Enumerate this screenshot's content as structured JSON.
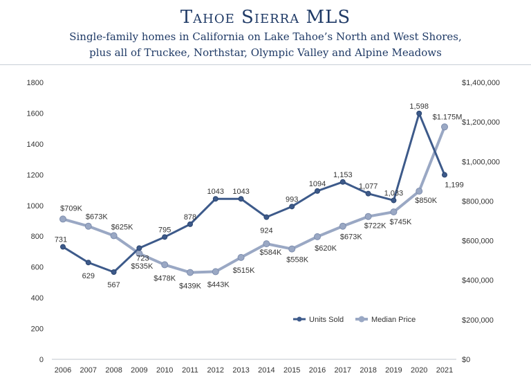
{
  "header": {
    "title": "Tahoe Sierra MLS",
    "subtitle_line1": "Single-family homes in California on Lake Tahoe’s North and West Shores,",
    "subtitle_line2": "plus all of Truckee, Northstar, Olympic Valley and Alpine Meadows"
  },
  "chart_data": {
    "type": "line",
    "title": "Tahoe Sierra MLS",
    "categories": [
      "2006",
      "2007",
      "2008",
      "2009",
      "2010",
      "2011",
      "2012",
      "2013",
      "2014",
      "2015",
      "2016",
      "2017",
      "2018",
      "2019",
      "2020",
      "2021"
    ],
    "series": [
      {
        "name": "Units Sold",
        "axis": "left",
        "color": "#3d5a8a",
        "values": [
          731,
          629,
          567,
          723,
          795,
          878,
          1043,
          1043,
          924,
          993,
          1094,
          1153,
          1077,
          1033,
          1598,
          1199
        ],
        "labels": [
          "731",
          "629",
          "567",
          "723",
          "795",
          "878",
          "1043",
          "1043",
          "924",
          "993",
          "1094",
          "1,153",
          "1,077",
          "1,033",
          "1,598",
          "1,199"
        ]
      },
      {
        "name": "Median Price",
        "axis": "right",
        "color": "#9aa8c4",
        "values": [
          709000,
          673000,
          625000,
          535000,
          478000,
          439000,
          443000,
          515000,
          584000,
          558000,
          620000,
          673000,
          722000,
          745000,
          850000,
          1175000
        ],
        "labels": [
          "$709K",
          "$673K",
          "$625K",
          "$535K",
          "$478K",
          "$439K",
          "$443K",
          "$515K",
          "$584K",
          "$558K",
          "$620K",
          "$673K",
          "$722K",
          "$745K",
          "$850K",
          "$1.175M"
        ]
      }
    ],
    "y_left": {
      "min": 0,
      "max": 1800,
      "ticks": [
        "0",
        "200",
        "400",
        "600",
        "800",
        "1000",
        "1200",
        "1400",
        "1600",
        "1800"
      ]
    },
    "y_right": {
      "min": 0,
      "max": 1400000,
      "ticks": [
        "$0",
        "$200,000",
        "$400,000",
        "$600,000",
        "$800,000",
        "$1,000,000",
        "$1,200,000",
        "$1,400,000"
      ]
    },
    "grid": false,
    "legend_position": "bottom-right-inside"
  }
}
